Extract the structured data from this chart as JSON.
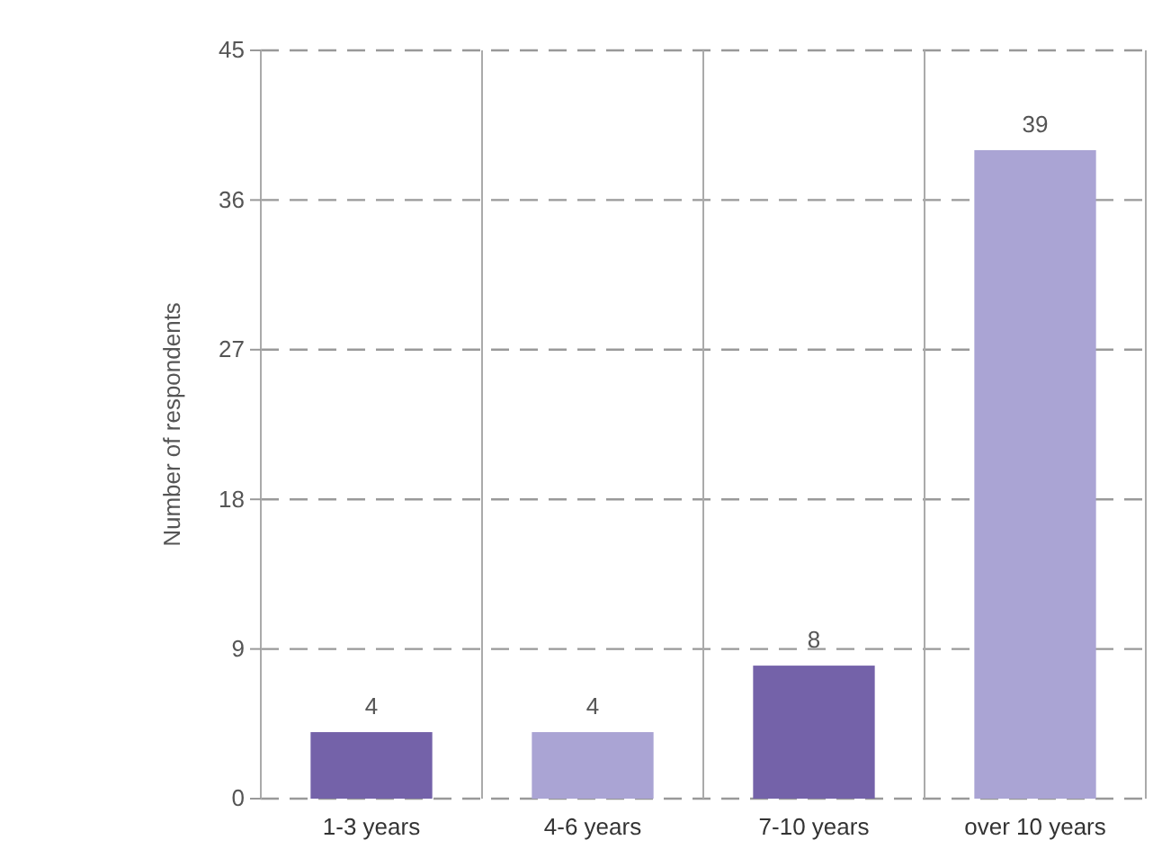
{
  "chart_data": {
    "type": "bar",
    "ylabel": "Number of respondents",
    "categories": [
      "1-3 years",
      "4-6 years",
      "7-10 years",
      "over 10 years"
    ],
    "values": [
      4,
      4,
      8,
      39
    ],
    "colors": [
      "#7462a9",
      "#aaa4d4",
      "#7462a9",
      "#aaa4d4"
    ],
    "ylim": [
      0,
      45
    ],
    "yticks": [
      0,
      9,
      18,
      27,
      36,
      45
    ],
    "grid": true,
    "data_labels": true
  }
}
